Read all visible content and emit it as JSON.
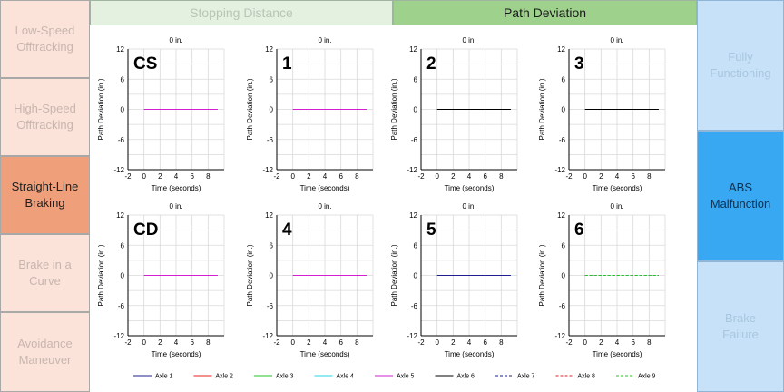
{
  "left_menu": {
    "items": [
      {
        "label_lines": [
          "Low-Speed",
          "Offtracking"
        ],
        "active": false
      },
      {
        "label_lines": [
          "High-Speed",
          "Offtracking"
        ],
        "active": false
      },
      {
        "label_lines": [
          "Straight-Line",
          "Braking"
        ],
        "active": true
      },
      {
        "label_lines": [
          "Brake in a",
          "Curve"
        ],
        "active": false
      },
      {
        "label_lines": [
          "Avoidance",
          "Maneuver"
        ],
        "active": false
      }
    ]
  },
  "tabs": {
    "stopping_distance": "Stopping Distance",
    "path_deviation": "Path Deviation",
    "active": "path_deviation"
  },
  "right_menu": {
    "items": [
      {
        "label_lines": [
          "Fully",
          "Functioning"
        ],
        "active": false
      },
      {
        "label_lines": [
          "ABS",
          "Malfunction"
        ],
        "active": true
      },
      {
        "label_lines": [
          "Brake",
          "Failure"
        ],
        "active": false
      }
    ]
  },
  "colors": {
    "axle_1": "#1f1f8f",
    "axle_2": "#e02020",
    "axle_3": "#22c322",
    "axle_4": "#22d6e0",
    "axle_5": "#d21fd2",
    "axle_6": "#000000",
    "axle_7": "#1f1f8f",
    "axle_8": "#e02020",
    "axle_9": "#22c322",
    "grid": "#d9d9d9"
  },
  "chart_data": [
    {
      "type": "line",
      "label": "CS",
      "title": "0 in.",
      "xlabel": "Time (seconds)",
      "ylabel": "Path Deviation (in.)",
      "xlim": [
        -2,
        10
      ],
      "ylim": [
        -12,
        12
      ],
      "xticks": [
        "-2",
        "0",
        "2",
        "4",
        "6",
        "8"
      ],
      "yticks": [
        "12",
        "6",
        "0",
        "-6",
        "-12"
      ],
      "grid": true,
      "series": [
        {
          "axle": 5,
          "x": [
            0,
            9.2
          ],
          "y": [
            0,
            0
          ]
        }
      ]
    },
    {
      "type": "line",
      "label": "1",
      "title": "0 in.",
      "xlabel": "Time (seconds)",
      "ylabel": "Path Deviation (in.)",
      "xlim": [
        -2,
        10
      ],
      "ylim": [
        -12,
        12
      ],
      "xticks": [
        "-2",
        "0",
        "2",
        "4",
        "6",
        "8"
      ],
      "yticks": [
        "12",
        "6",
        "0",
        "-6",
        "-12"
      ],
      "grid": true,
      "series": [
        {
          "axle": 5,
          "x": [
            0,
            9.2
          ],
          "y": [
            0,
            0
          ]
        }
      ]
    },
    {
      "type": "line",
      "label": "2",
      "title": "0 in.",
      "xlabel": "Time (seconds)",
      "ylabel": "Path Deviation (in.)",
      "xlim": [
        -2,
        10
      ],
      "ylim": [
        -12,
        12
      ],
      "xticks": [
        "-2",
        "0",
        "2",
        "4",
        "6",
        "8"
      ],
      "yticks": [
        "12",
        "6",
        "0",
        "-6",
        "-12"
      ],
      "grid": true,
      "series": [
        {
          "axle": 6,
          "x": [
            0,
            9.2
          ],
          "y": [
            0,
            0
          ]
        }
      ]
    },
    {
      "type": "line",
      "label": "3",
      "title": "0 in.",
      "xlabel": "Time (seconds)",
      "ylabel": "Path Deviation (in.)",
      "xlim": [
        -2,
        10
      ],
      "ylim": [
        -12,
        12
      ],
      "xticks": [
        "-2",
        "0",
        "2",
        "4",
        "6",
        "8"
      ],
      "yticks": [
        "12",
        "6",
        "0",
        "-6",
        "-12"
      ],
      "grid": true,
      "series": [
        {
          "axle": 6,
          "x": [
            0,
            9.2
          ],
          "y": [
            0,
            0
          ]
        }
      ]
    },
    {
      "type": "line",
      "label": "CD",
      "title": "0 in.",
      "xlabel": "Time (seconds)",
      "ylabel": "Path Deviation (in.)",
      "xlim": [
        -2,
        10
      ],
      "ylim": [
        -12,
        12
      ],
      "xticks": [
        "-2",
        "0",
        "2",
        "4",
        "6",
        "8"
      ],
      "yticks": [
        "12",
        "6",
        "0",
        "-6",
        "-12"
      ],
      "grid": true,
      "series": [
        {
          "axle": 5,
          "x": [
            0,
            9.2
          ],
          "y": [
            0,
            0
          ]
        }
      ]
    },
    {
      "type": "line",
      "label": "4",
      "title": "0 in.",
      "xlabel": "Time (seconds)",
      "ylabel": "Path Deviation (in.)",
      "xlim": [
        -2,
        10
      ],
      "ylim": [
        -12,
        12
      ],
      "xticks": [
        "-2",
        "0",
        "2",
        "4",
        "6",
        "8"
      ],
      "yticks": [
        "12",
        "6",
        "0",
        "-6",
        "-12"
      ],
      "grid": true,
      "series": [
        {
          "axle": 5,
          "x": [
            0,
            9.2
          ],
          "y": [
            0,
            0
          ]
        }
      ]
    },
    {
      "type": "line",
      "label": "5",
      "title": "0 in.",
      "xlabel": "Time (seconds)",
      "ylabel": "Path Deviation (in.)",
      "xlim": [
        -2,
        10
      ],
      "ylim": [
        -12,
        12
      ],
      "xticks": [
        "-2",
        "0",
        "2",
        "4",
        "6",
        "8"
      ],
      "yticks": [
        "12",
        "6",
        "0",
        "-6",
        "-12"
      ],
      "grid": true,
      "series": [
        {
          "axle": 1,
          "x": [
            0,
            9.2
          ],
          "y": [
            0,
            0
          ]
        }
      ]
    },
    {
      "type": "line",
      "label": "6",
      "title": "0 in.",
      "xlabel": "Time (seconds)",
      "ylabel": "Path Deviation (in.)",
      "xlim": [
        -2,
        10
      ],
      "ylim": [
        -12,
        12
      ],
      "xticks": [
        "-2",
        "0",
        "2",
        "4",
        "6",
        "8"
      ],
      "yticks": [
        "12",
        "6",
        "0",
        "-6",
        "-12"
      ],
      "grid": true,
      "series": [
        {
          "axle": 7,
          "x": [
            0,
            9.2
          ],
          "y": [
            0,
            0
          ]
        },
        {
          "axle": 9,
          "x": [
            0,
            9.2
          ],
          "y": [
            0,
            0
          ]
        }
      ]
    }
  ],
  "legend": [
    {
      "label": "Axle 1",
      "axle": 1,
      "dashed": false
    },
    {
      "label": "Axle 2",
      "axle": 2,
      "dashed": false
    },
    {
      "label": "Axle 3",
      "axle": 3,
      "dashed": false
    },
    {
      "label": "Axle 4",
      "axle": 4,
      "dashed": false
    },
    {
      "label": "Axle 5",
      "axle": 5,
      "dashed": false
    },
    {
      "label": "Axle 6",
      "axle": 6,
      "dashed": false
    },
    {
      "label": "Axle 7",
      "axle": 7,
      "dashed": true
    },
    {
      "label": "Axle 8",
      "axle": 8,
      "dashed": true
    },
    {
      "label": "Axle 9",
      "axle": 9,
      "dashed": true
    }
  ]
}
